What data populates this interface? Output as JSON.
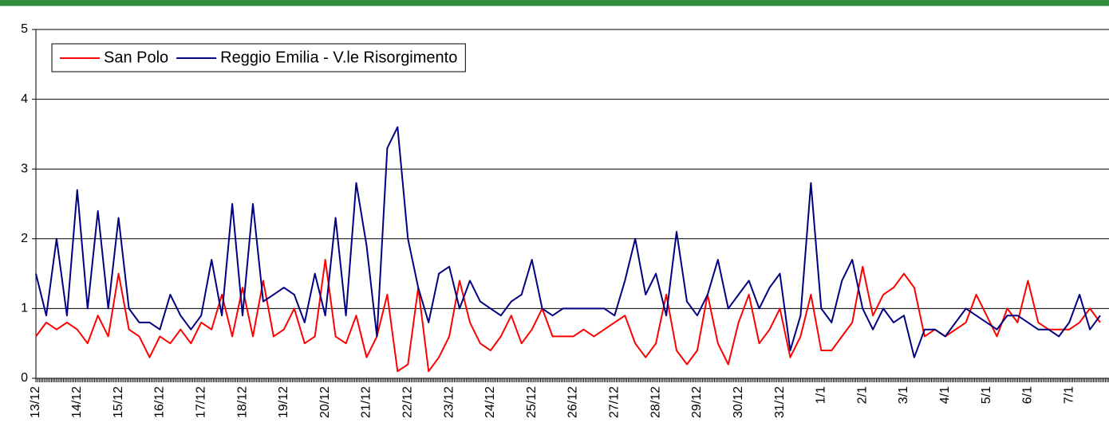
{
  "chart_data": {
    "type": "line",
    "categories": [
      "13/12",
      null,
      null,
      null,
      "14/12",
      null,
      null,
      null,
      "15/12",
      null,
      null,
      null,
      "16/12",
      null,
      null,
      null,
      "17/12",
      null,
      null,
      null,
      "18/12",
      null,
      null,
      null,
      "19/12",
      null,
      null,
      null,
      "20/12",
      null,
      null,
      null,
      "21/12",
      null,
      null,
      null,
      "22/12",
      null,
      null,
      null,
      "23/12",
      null,
      null,
      null,
      "24/12",
      null,
      null,
      null,
      "25/12",
      null,
      null,
      null,
      "26/12",
      null,
      null,
      null,
      "27/12",
      null,
      null,
      null,
      "28/12",
      null,
      null,
      null,
      "29/12",
      null,
      null,
      null,
      "30/12",
      null,
      null,
      null,
      "31/12",
      null,
      null,
      null,
      "1/1",
      null,
      null,
      null,
      "2/1",
      null,
      null,
      null,
      "3/1",
      null,
      null,
      null,
      "4/1",
      null,
      null,
      null,
      "5/1",
      null,
      null,
      null,
      "6/1",
      null,
      null,
      null,
      "7/1",
      null,
      null,
      null
    ],
    "series": [
      {
        "name": "San Polo",
        "color": "#ff0000",
        "values": [
          0.6,
          0.8,
          0.7,
          0.8,
          0.7,
          0.5,
          0.9,
          0.6,
          1.5,
          0.7,
          0.6,
          0.3,
          0.6,
          0.5,
          0.7,
          0.5,
          0.8,
          0.7,
          1.2,
          0.6,
          1.3,
          0.6,
          1.4,
          0.6,
          0.7,
          1.0,
          0.5,
          0.6,
          1.7,
          0.6,
          0.5,
          0.9,
          0.3,
          0.6,
          1.2,
          0.1,
          0.2,
          1.3,
          0.1,
          0.3,
          0.6,
          1.4,
          0.8,
          0.5,
          0.4,
          0.6,
          0.9,
          0.5,
          0.7,
          1.0,
          0.6,
          0.6,
          0.6,
          0.7,
          0.6,
          0.7,
          0.8,
          0.9,
          0.5,
          0.3,
          0.5,
          1.2,
          0.4,
          0.2,
          0.4,
          1.2,
          0.5,
          0.2,
          0.8,
          1.2,
          0.5,
          0.7,
          1.0,
          0.3,
          0.6,
          1.2,
          0.4,
          0.4,
          0.6,
          0.8,
          1.6,
          0.9,
          1.2,
          1.3,
          1.5,
          1.3,
          0.6,
          0.7,
          0.6,
          0.7,
          0.8,
          1.2,
          0.9,
          0.6,
          1.0,
          0.8,
          1.4,
          0.8,
          0.7,
          0.7,
          0.7,
          0.8,
          1.0,
          0.8
        ]
      },
      {
        "name": "Reggio Emilia - V.le Risorgimento",
        "color": "#000080",
        "values": [
          1.5,
          0.9,
          2.0,
          0.9,
          2.7,
          1.0,
          2.4,
          1.0,
          2.3,
          1.0,
          0.8,
          0.8,
          0.7,
          1.2,
          0.9,
          0.7,
          0.9,
          1.7,
          0.9,
          2.5,
          0.9,
          2.5,
          1.1,
          1.2,
          1.3,
          1.2,
          0.8,
          1.5,
          0.9,
          2.3,
          0.9,
          2.8,
          1.9,
          0.6,
          3.3,
          3.6,
          2.0,
          1.3,
          0.8,
          1.5,
          1.6,
          1.0,
          1.4,
          1.1,
          1.0,
          0.9,
          1.1,
          1.2,
          1.7,
          1.0,
          0.9,
          1.0,
          1.0,
          1.0,
          1.0,
          1.0,
          0.9,
          1.4,
          2.0,
          1.2,
          1.5,
          0.9,
          2.1,
          1.1,
          0.9,
          1.2,
          1.7,
          1.0,
          1.2,
          1.4,
          1.0,
          1.3,
          1.5,
          0.4,
          0.9,
          2.8,
          1.0,
          0.8,
          1.4,
          1.7,
          1.0,
          0.7,
          1.0,
          0.8,
          0.9,
          0.3,
          0.7,
          0.7,
          0.6,
          0.8,
          1.0,
          0.9,
          0.8,
          0.7,
          0.9,
          0.9,
          0.8,
          0.7,
          0.7,
          0.6,
          0.8,
          1.2,
          0.7,
          0.9
        ]
      }
    ],
    "ylim": [
      0,
      5
    ],
    "yticks": [
      0,
      1,
      2,
      3,
      4,
      5
    ],
    "grid": true,
    "legend": "top-left"
  }
}
